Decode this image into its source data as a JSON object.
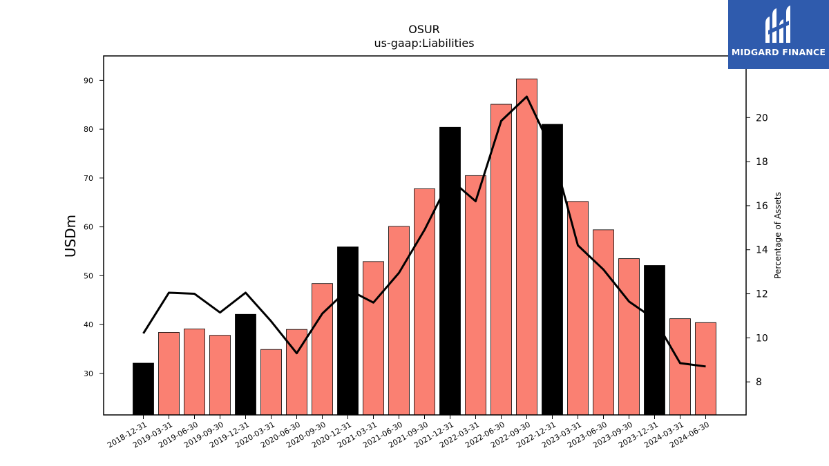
{
  "brand": {
    "name": "MIDGARD FINANCE",
    "color": "#2f5bad"
  },
  "chart_data": {
    "type": "bar",
    "title": "OSUR",
    "subtitle": "us-gaap:Liabilities",
    "ylabel": "USDm",
    "y2label": "Percentage of Assets",
    "ylim": [
      21.5,
      95
    ],
    "y2lim": [
      6.5,
      22.8
    ],
    "yticks": [
      30,
      40,
      50,
      60,
      70,
      80,
      90
    ],
    "y2ticks": [
      8,
      10,
      12,
      14,
      16,
      18,
      20
    ],
    "grid": false,
    "colors": {
      "annual": "#000000",
      "quarterly": "#fa8072",
      "line": "#000000"
    },
    "categories": [
      "2018-12-31",
      "2019-03-31",
      "2019-06-30",
      "2019-09-30",
      "2019-12-31",
      "2020-03-31",
      "2020-06-30",
      "2020-09-30",
      "2020-12-31",
      "2021-03-31",
      "2021-06-30",
      "2021-09-30",
      "2021-12-31",
      "2022-03-31",
      "2022-06-30",
      "2022-09-30",
      "2022-12-31",
      "2023-03-31",
      "2023-06-30",
      "2023-09-30",
      "2023-12-31",
      "2024-03-31",
      "2024-06-30"
    ],
    "series": [
      {
        "kind": "bar",
        "values": [
          32.1,
          38.4,
          39.1,
          37.8,
          42.1,
          34.9,
          39.0,
          48.4,
          55.9,
          52.9,
          60.1,
          67.8,
          80.4,
          70.5,
          85.1,
          90.3,
          81.0,
          65.2,
          59.4,
          53.5,
          52.1,
          41.2,
          40.4
        ],
        "annual": [
          true,
          false,
          false,
          false,
          true,
          false,
          false,
          false,
          true,
          false,
          false,
          false,
          true,
          false,
          false,
          false,
          true,
          false,
          false,
          false,
          true,
          false,
          false
        ]
      },
      {
        "kind": "line",
        "axis": "right",
        "values": [
          10.2,
          12.05,
          12.0,
          11.15,
          12.05,
          10.75,
          9.3,
          11.1,
          12.2,
          11.6,
          12.95,
          14.9,
          17.2,
          16.2,
          19.85,
          20.95,
          18.5,
          14.2,
          13.1,
          11.65,
          10.85,
          8.85,
          8.7
        ]
      }
    ]
  }
}
